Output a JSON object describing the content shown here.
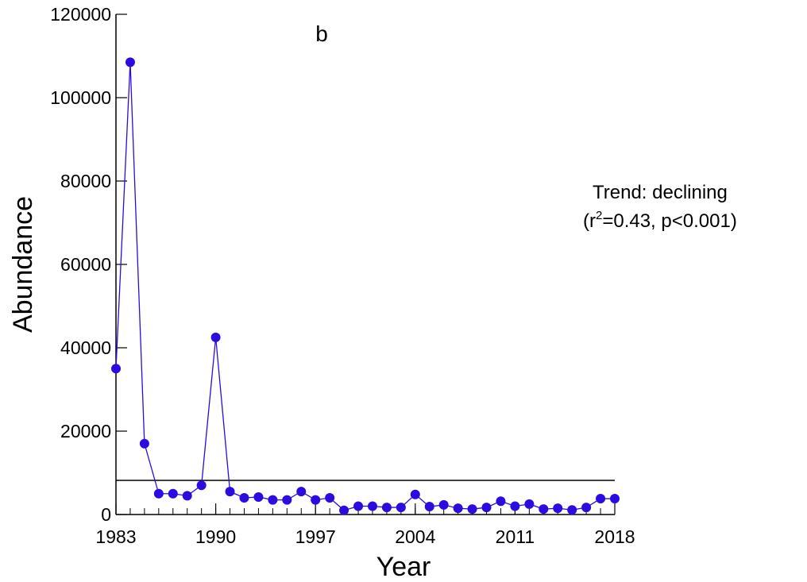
{
  "chart_data": {
    "type": "line",
    "title": "b",
    "x_label": "Year",
    "y_label": "Abundance",
    "annotation": "Trend: declining",
    "annotation_stat": [
      "(r",
      "2",
      "=0.43, p<0.001)"
    ],
    "x": [
      1983,
      1984,
      1985,
      1986,
      1987,
      1988,
      1989,
      1990,
      1991,
      1992,
      1993,
      1994,
      1995,
      1996,
      1997,
      1998,
      1999,
      2000,
      2001,
      2002,
      2003,
      2004,
      2005,
      2006,
      2007,
      2008,
      2009,
      2010,
      2011,
      2012,
      2013,
      2014,
      2015,
      2016,
      2017,
      2018
    ],
    "series": [
      {
        "name": "Abundance",
        "color": "#2a0be0",
        "values": [
          35000,
          108500,
          17000,
          5000,
          5000,
          4500,
          7000,
          42500,
          5500,
          4000,
          4200,
          3500,
          3500,
          5500,
          3500,
          4000,
          1000,
          2000,
          2000,
          1700,
          1700,
          4800,
          1900,
          2300,
          1500,
          1300,
          1700,
          3200,
          2000,
          2500,
          1300,
          1500,
          1100,
          1700,
          3800,
          3800
        ]
      }
    ],
    "reference_line": 8200,
    "xlim": [
      1983,
      2018
    ],
    "xticks": [
      1983,
      1990,
      1997,
      2004,
      2011,
      2018
    ],
    "minor_xtick_interval": 1,
    "ylim": [
      0,
      120000
    ],
    "yticks": [
      0,
      20000,
      40000,
      60000,
      80000,
      100000,
      120000
    ],
    "grid": false
  }
}
